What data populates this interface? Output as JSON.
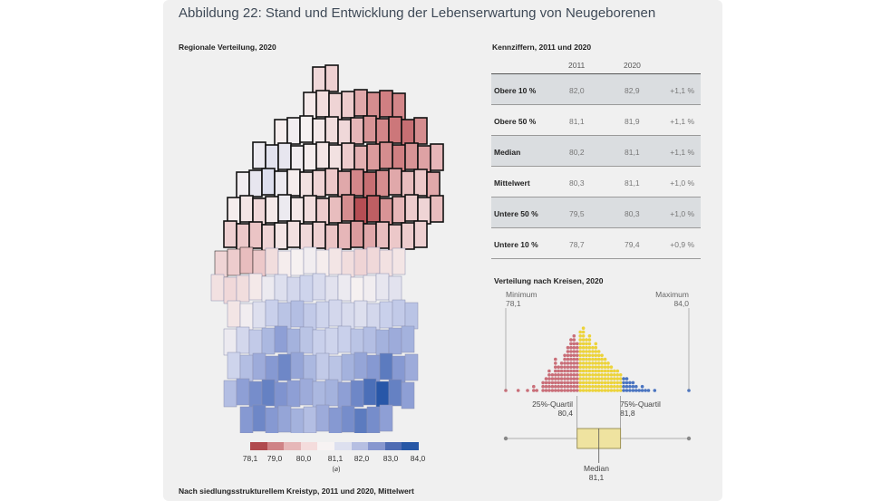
{
  "title": "Abbildung 22: Stand und Entwicklung der Lebenserwartung von Neugeborenen",
  "sections": {
    "map": "Regionale Verteilung, 2020",
    "kennziffern": "Kennziffern, 2011 und 2020",
    "verteilung": "Verteilung nach Kreisen, 2020",
    "bottom": "Nach siedlungsstrukturellem Kreistyp, 2011 und 2020, Mittelwert"
  },
  "legend": {
    "ticks": [
      "78,1",
      "79,0",
      "80,0",
      "81,1",
      "82,0",
      "83,0",
      "84,0"
    ],
    "avg_label": "(⌀)",
    "colors": [
      "#b04a4e",
      "#cf8386",
      "#e6b7b8",
      "#f4dcdc",
      "#f7f3f3",
      "#dde0ef",
      "#b6bfe2",
      "#8797cf",
      "#4f6cb3",
      "#2858a6"
    ]
  },
  "table": {
    "col_headers": [
      "2011",
      "2020"
    ],
    "rows": [
      {
        "label": "Obere 10 %",
        "v2011": "82,0",
        "v2020": "82,9",
        "change": "+1,1 %"
      },
      {
        "label": "Obere 50 %",
        "v2011": "81,1",
        "v2020": "81,9",
        "change": "+1,1 %"
      },
      {
        "label": "Median",
        "v2011": "80,2",
        "v2020": "81,1",
        "change": "+1,1 %"
      },
      {
        "label": "Mittelwert",
        "v2011": "80,3",
        "v2020": "81,1",
        "change": "+1,0 %"
      },
      {
        "label": "Untere 50 %",
        "v2011": "79,5",
        "v2020": "80,3",
        "change": "+1,0 %"
      },
      {
        "label": "Untere 10 %",
        "v2011": "78,7",
        "v2020": "79,4",
        "change": "+0,9 %"
      }
    ]
  },
  "distribution": {
    "min_label": "Minimum",
    "min_value": "78,1",
    "max_label": "Maximum",
    "max_value": "84,0",
    "q1_label": "25%-Quartil",
    "q1_value": "80,4",
    "q3_label": "75%-Quartil",
    "q3_value": "81,8",
    "median_label": "Median",
    "median_value": "81,1",
    "colors": {
      "low": "#c96e78",
      "mid": "#ecd33a",
      "high": "#4a74c0"
    }
  },
  "chart_data": {
    "type": "dot histogram",
    "x_range": [
      78.1,
      84.0
    ],
    "bin_width": 0.1,
    "bins_start": 78.1,
    "counts": [
      1,
      0,
      0,
      0,
      1,
      0,
      0,
      1,
      0,
      2,
      1,
      0,
      3,
      4,
      6,
      5,
      9,
      7,
      8,
      10,
      12,
      14,
      15,
      13,
      16,
      17,
      14,
      15,
      12,
      13,
      11,
      10,
      9,
      8,
      7,
      6,
      6,
      5,
      4,
      4,
      3,
      3,
      2,
      1,
      2,
      1,
      1,
      0,
      1,
      0,
      0,
      0,
      0,
      0,
      0,
      0,
      0,
      0,
      0,
      1
    ],
    "quartiles": {
      "q1": 80.4,
      "median": 81.1,
      "q3": 81.8
    },
    "min": 78.1,
    "max": 84.0
  },
  "map_data": {
    "type": "choropleth",
    "note_values": "cell values = Lebenserwartung in Jahren",
    "grid": [
      [
        null,
        null,
        null,
        null,
        null,
        null,
        null,
        null,
        80.5,
        80.3,
        null,
        null,
        null,
        null,
        null,
        null,
        null,
        null,
        null,
        null
      ],
      [
        null,
        null,
        null,
        null,
        null,
        null,
        null,
        80.9,
        80.6,
        80.4,
        80.2,
        79.6,
        79.2,
        79.0,
        79.1,
        null,
        null,
        null,
        null,
        null
      ],
      [
        null,
        null,
        null,
        null,
        null,
        81.0,
        81.2,
        81.1,
        80.9,
        80.6,
        80.5,
        79.8,
        79.3,
        79.1,
        78.9,
        78.8,
        79.2,
        null,
        null,
        null
      ],
      [
        null,
        null,
        null,
        81.3,
        81.5,
        81.4,
        81.2,
        81.0,
        80.8,
        80.7,
        80.2,
        79.7,
        79.4,
        79.2,
        79.0,
        79.3,
        79.5,
        79.8,
        null,
        null
      ],
      [
        null,
        null,
        81.2,
        81.4,
        81.6,
        81.3,
        81.0,
        80.7,
        80.4,
        80.1,
        79.6,
        79.1,
        78.8,
        79.2,
        79.6,
        79.9,
        80.1,
        79.6,
        null,
        null
      ],
      [
        null,
        81.0,
        80.8,
        80.5,
        80.9,
        81.3,
        80.9,
        80.6,
        80.2,
        79.9,
        79.2,
        78.4,
        78.6,
        79.3,
        79.8,
        80.2,
        80.4,
        79.9,
        null,
        null
      ],
      [
        null,
        80.3,
        80.1,
        80.0,
        80.4,
        80.8,
        80.7,
        80.5,
        80.3,
        80.0,
        79.8,
        79.4,
        79.6,
        79.9,
        80.1,
        80.2,
        80.3,
        null,
        null,
        null
      ],
      [
        80.4,
        80.2,
        79.9,
        80.1,
        80.6,
        81.0,
        81.1,
        81.2,
        81.0,
        80.8,
        80.6,
        80.4,
        80.5,
        80.7,
        80.8,
        null,
        null,
        null,
        null,
        null
      ],
      [
        80.7,
        80.5,
        80.6,
        80.9,
        81.3,
        81.6,
        81.8,
        81.9,
        81.7,
        81.5,
        81.3,
        81.1,
        81.2,
        81.4,
        81.5,
        null,
        null,
        null,
        null,
        null
      ],
      [
        null,
        80.8,
        81.2,
        81.6,
        82.0,
        82.2,
        82.3,
        82.1,
        81.9,
        81.8,
        81.7,
        81.6,
        81.8,
        82.0,
        82.1,
        82.2,
        null,
        null,
        null,
        null
      ],
      [
        null,
        81.3,
        81.8,
        82.1,
        82.4,
        82.8,
        82.5,
        82.2,
        82.0,
        81.9,
        82.0,
        82.2,
        82.3,
        82.5,
        82.6,
        82.5,
        null,
        null,
        null,
        null
      ],
      [
        null,
        81.9,
        82.3,
        82.6,
        82.9,
        83.2,
        82.7,
        82.4,
        82.1,
        82.2,
        82.5,
        82.7,
        82.9,
        83.4,
        82.9,
        82.6,
        null,
        null,
        null,
        null
      ],
      [
        null,
        82.3,
        82.8,
        83.1,
        83.3,
        83.0,
        82.8,
        82.6,
        82.4,
        82.5,
        82.8,
        83.2,
        83.6,
        84.0,
        83.3,
        82.8,
        null,
        null,
        null,
        null
      ],
      [
        null,
        null,
        82.9,
        83.2,
        82.9,
        82.7,
        82.5,
        82.3,
        82.6,
        82.9,
        83.1,
        83.4,
        83.1,
        82.8,
        null,
        null,
        null,
        null,
        null,
        null
      ]
    ]
  }
}
